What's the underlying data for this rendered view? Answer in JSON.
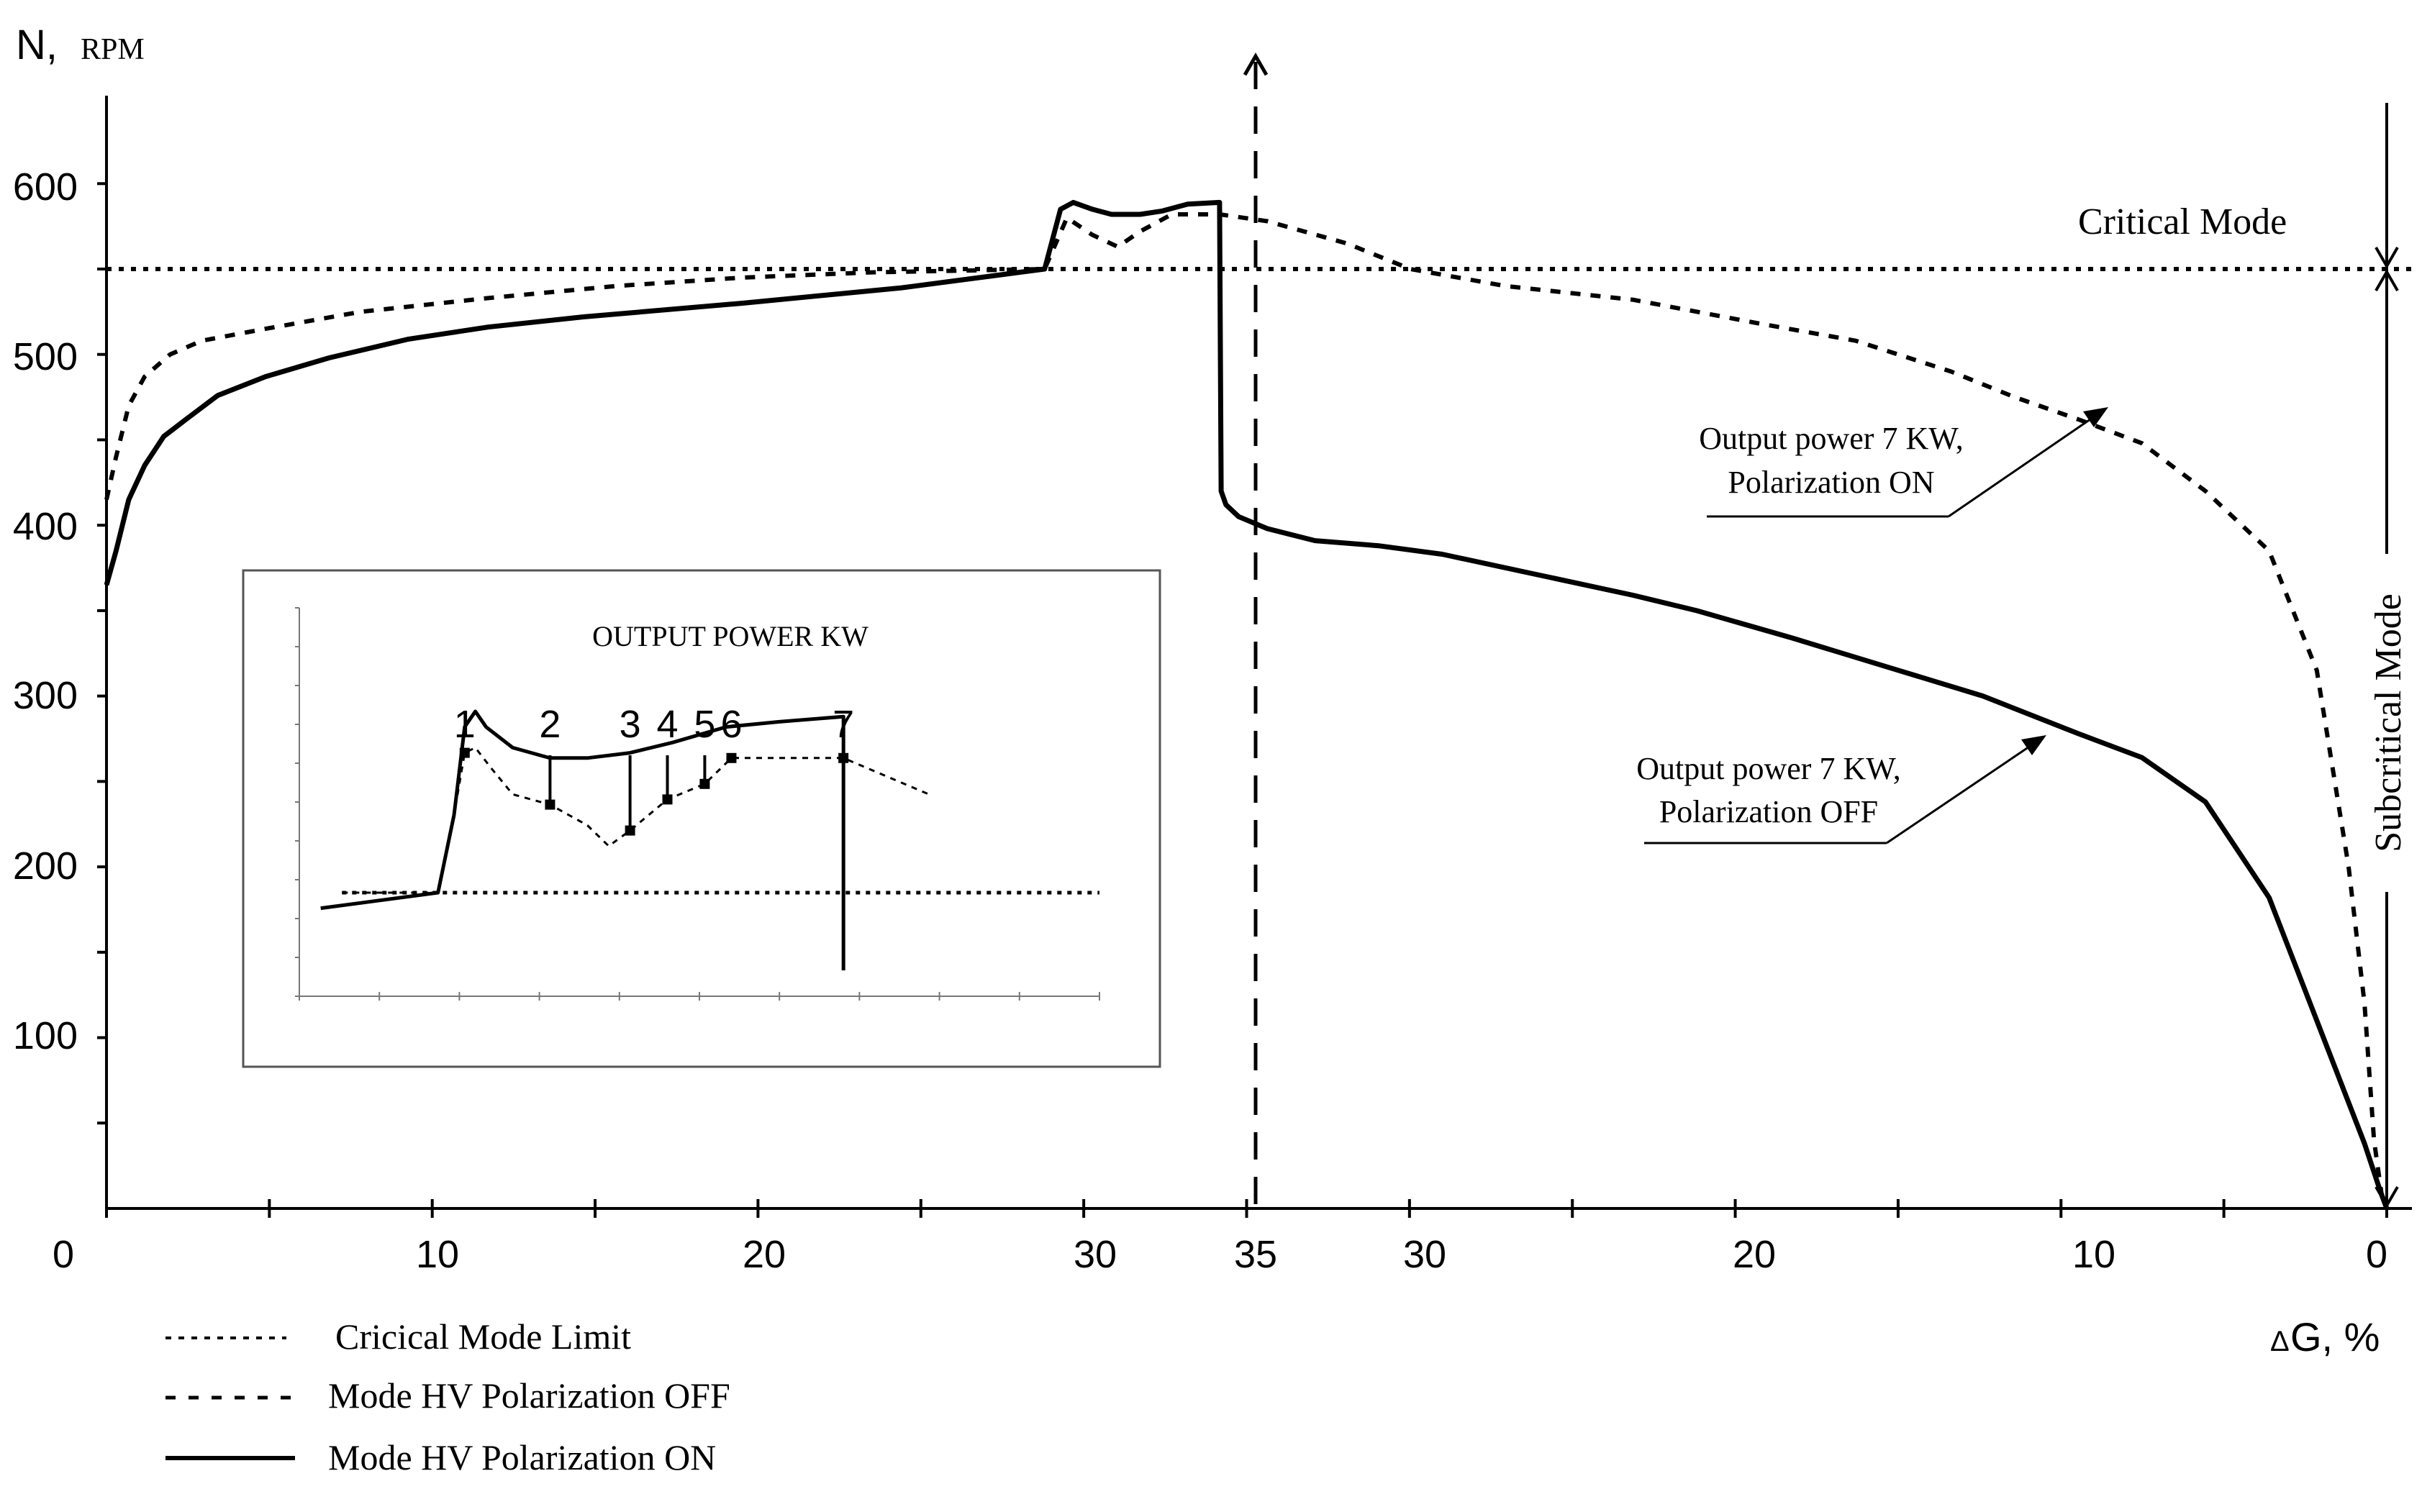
{
  "chart_data": {
    "type": "line",
    "ylabel": {
      "main": "N,",
      "unit": "RPM"
    },
    "xlabel": {
      "prefix": "Δ",
      "main": "G, %"
    },
    "ylim": [
      0,
      650
    ],
    "y_ticks": [
      "100",
      "200",
      "300",
      "400",
      "500",
      "600"
    ],
    "x_origin_label": "0",
    "x_ticks_left": [
      "10",
      "20",
      "30"
    ],
    "x_tick_center": "35",
    "x_ticks_right": [
      "30",
      "20",
      "10",
      "0"
    ],
    "x_axis_note": "x axis runs 0 → 35 (rising ΔG) then 35 → 0 (falling ΔG)",
    "critical_mode_level": 550,
    "region_labels": {
      "critical": "Critical Mode",
      "subcritical": "Subcritical Mode"
    },
    "legend": [
      {
        "label": "Cricical Mode Limit",
        "style": "dotted"
      },
      {
        "label": "Mode HV Polarization OFF",
        "style": "dashed"
      },
      {
        "label": "Mode HV Polarization ON",
        "style": "solid"
      }
    ],
    "annotations": [
      {
        "line1": "Output power 7 KW,",
        "line2": "Polarization ON"
      },
      {
        "line1": "Output power 7 KW,",
        "line2": "Polarization OFF"
      }
    ],
    "series": [
      {
        "style": "solid",
        "legend_label": "Mode HV Polarization ON",
        "points": [
          [
            0,
            365
          ],
          [
            0.3,
            385
          ],
          [
            0.7,
            415
          ],
          [
            1.2,
            435
          ],
          [
            1.8,
            452
          ],
          [
            2.5,
            462
          ],
          [
            3.5,
            476
          ],
          [
            5,
            487
          ],
          [
            7,
            498
          ],
          [
            9.5,
            509
          ],
          [
            12,
            516
          ],
          [
            15,
            522
          ],
          [
            20,
            530
          ],
          [
            25,
            539
          ],
          [
            29.5,
            550
          ],
          [
            30,
            585
          ],
          [
            30.4,
            589
          ],
          [
            31,
            585
          ],
          [
            31.6,
            582
          ],
          [
            32.5,
            582
          ],
          [
            33.2,
            584
          ],
          [
            34,
            588
          ],
          [
            35,
            589
          ],
          [
            35.05,
            420
          ],
          [
            35.2,
            412
          ],
          [
            35.6,
            405
          ],
          [
            36.5,
            398
          ],
          [
            38,
            391
          ],
          [
            40,
            388
          ],
          [
            42,
            383
          ],
          [
            45,
            371
          ],
          [
            48,
            359
          ],
          [
            50,
            350
          ],
          [
            53,
            334
          ],
          [
            56,
            317
          ],
          [
            59,
            300
          ],
          [
            62,
            278
          ],
          [
            64,
            264
          ],
          [
            66,
            238
          ],
          [
            68,
            182
          ],
          [
            69.5,
            110
          ],
          [
            71,
            38
          ],
          [
            71.5,
            10
          ],
          [
            71.7,
            0
          ]
        ]
      },
      {
        "style": "dashed",
        "legend_label": "Mode HV Polarization OFF",
        "points": [
          [
            0,
            415
          ],
          [
            0.3,
            440
          ],
          [
            0.7,
            470
          ],
          [
            1.2,
            487
          ],
          [
            2,
            500
          ],
          [
            3,
            508
          ],
          [
            5,
            515
          ],
          [
            8,
            525
          ],
          [
            12,
            533
          ],
          [
            16,
            540
          ],
          [
            20,
            545
          ],
          [
            24,
            548
          ],
          [
            29.5,
            550
          ],
          [
            30.2,
            580
          ],
          [
            31,
            570
          ],
          [
            31.8,
            563
          ],
          [
            32.5,
            572
          ],
          [
            33.5,
            582
          ],
          [
            35,
            582
          ],
          [
            36.5,
            578
          ],
          [
            39,
            565
          ],
          [
            41,
            550
          ],
          [
            44,
            540
          ],
          [
            48,
            532
          ],
          [
            52,
            518
          ],
          [
            55,
            508
          ],
          [
            58,
            490
          ],
          [
            60,
            475
          ],
          [
            62,
            462
          ],
          [
            64,
            448
          ],
          [
            66,
            420
          ],
          [
            68,
            385
          ],
          [
            69.5,
            315
          ],
          [
            70.5,
            200
          ],
          [
            71,
            120
          ],
          [
            71.3,
            40
          ],
          [
            71.6,
            0
          ]
        ]
      }
    ],
    "inset": {
      "title": "OUTPUT POWER KW",
      "markers": [
        "1",
        "2",
        "3",
        "4",
        "5",
        "6",
        "7"
      ],
      "marker_x": [
        10.5,
        18.5,
        26,
        29.5,
        33,
        35.5,
        46
      ],
      "series": [
        {
          "style": "solid",
          "points": [
            [
              -3,
              2
            ],
            [
              8,
              5
            ],
            [
              9.5,
              20
            ],
            [
              10.5,
              37
            ],
            [
              11.5,
              40
            ],
            [
              12.5,
              37
            ],
            [
              15,
              33
            ],
            [
              18.5,
              31
            ],
            [
              22,
              31
            ],
            [
              26,
              32
            ],
            [
              30,
              34
            ],
            [
              35,
              37
            ],
            [
              40,
              38
            ],
            [
              46,
              39
            ],
            [
              46,
              -10
            ]
          ]
        },
        {
          "style": "dashed",
          "points": [
            [
              -1,
              5
            ],
            [
              8,
              5
            ],
            [
              9.5,
              20
            ],
            [
              10.5,
              32
            ],
            [
              11.5,
              33
            ],
            [
              13,
              29
            ],
            [
              15,
              24
            ],
            [
              18.5,
              22
            ],
            [
              22,
              18
            ],
            [
              24,
              14
            ],
            [
              26,
              17
            ],
            [
              29.5,
              23
            ],
            [
              33,
              26
            ],
            [
              35.5,
              31
            ],
            [
              40,
              31
            ],
            [
              46,
              31
            ],
            [
              54,
              24
            ]
          ]
        },
        {
          "style": "dotted",
          "points": [
            [
              -1,
              5
            ],
            [
              70,
              5
            ]
          ]
        }
      ]
    }
  }
}
